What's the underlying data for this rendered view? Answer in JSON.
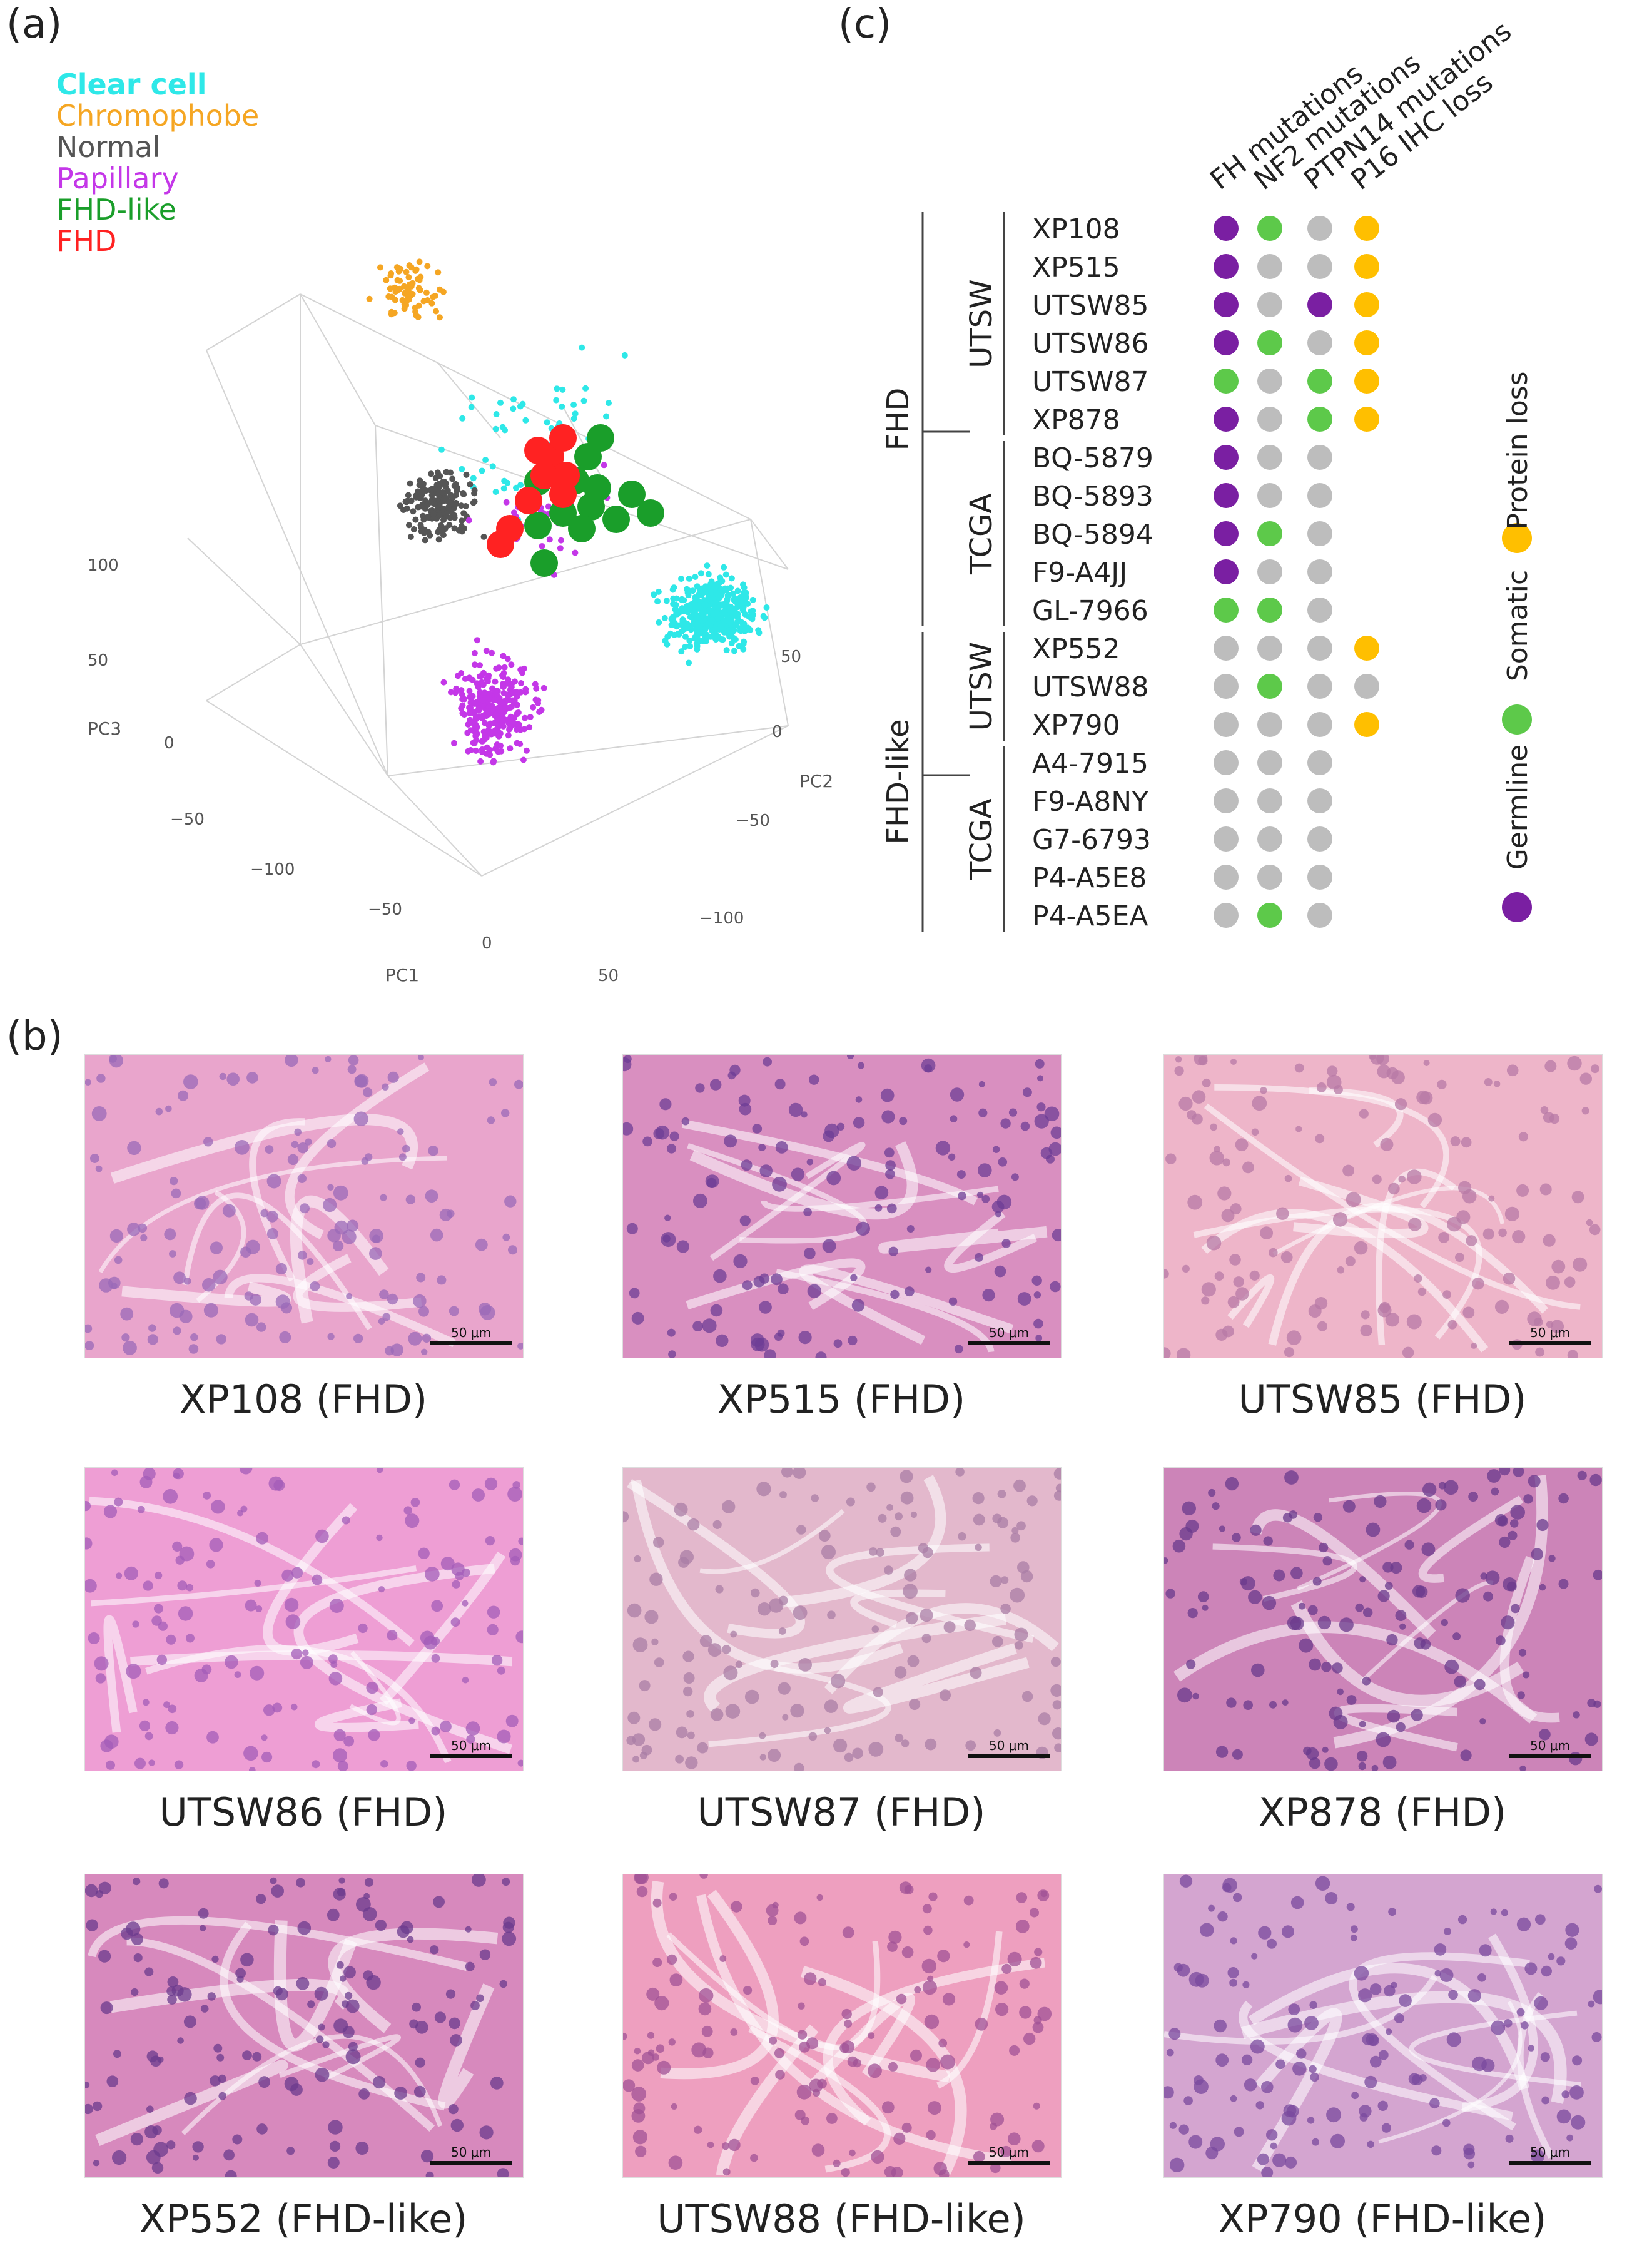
{
  "panels": {
    "a": "(a)",
    "b": "(b)",
    "c": "(c)"
  },
  "scatter": {
    "legend": [
      {
        "label": "Clear cell",
        "color": "#2ee8e8",
        "bold": true
      },
      {
        "label": "Chromophobe",
        "color": "#f5a623",
        "bold": false
      },
      {
        "label": "Normal",
        "color": "#555555",
        "bold": false
      },
      {
        "label": "Papillary",
        "color": "#c437e8",
        "bold": false
      },
      {
        "label": "FHD-like",
        "color": "#1a9e2a",
        "bold": false
      },
      {
        "label": "FHD",
        "color": "#ff2222",
        "bold": false
      }
    ],
    "axes": {
      "pc1": "PC1",
      "pc2": "PC2",
      "pc3": "PC3",
      "pc3_ticks": [
        "100",
        "50",
        "0",
        "−50"
      ],
      "pc1_ticks": [
        "−100",
        "−50",
        "0",
        "50"
      ],
      "pc2_ticks": [
        "50",
        "0",
        "−50",
        "−100"
      ]
    }
  },
  "table": {
    "columns": [
      "FH mutations",
      "NF2 mutations",
      "PTPN14 mutations",
      "P16 IHC loss"
    ],
    "groups": [
      {
        "label": "FHD",
        "subgroups": [
          {
            "label": "UTSW"
          },
          {
            "label": "TCGA"
          }
        ]
      },
      {
        "label": "FHD-like",
        "subgroups": [
          {
            "label": "UTSW"
          },
          {
            "label": "TCGA"
          }
        ]
      }
    ],
    "rows": [
      {
        "sample": "XP108",
        "cells": [
          "G",
          "S",
          "N",
          "P"
        ]
      },
      {
        "sample": "XP515",
        "cells": [
          "G",
          "N",
          "N",
          "P"
        ]
      },
      {
        "sample": "UTSW85",
        "cells": [
          "G",
          "N",
          "G",
          "P"
        ]
      },
      {
        "sample": "UTSW86",
        "cells": [
          "G",
          "S",
          "N",
          "P"
        ]
      },
      {
        "sample": "UTSW87",
        "cells": [
          "S",
          "N",
          "S",
          "P"
        ]
      },
      {
        "sample": "XP878",
        "cells": [
          "G",
          "N",
          "S",
          "P"
        ]
      },
      {
        "sample": "BQ-5879",
        "cells": [
          "G",
          "N",
          "N",
          ""
        ]
      },
      {
        "sample": "BQ-5893",
        "cells": [
          "G",
          "N",
          "N",
          ""
        ]
      },
      {
        "sample": "BQ-5894",
        "cells": [
          "G",
          "S",
          "N",
          ""
        ]
      },
      {
        "sample": "F9-A4JJ",
        "cells": [
          "G",
          "N",
          "N",
          ""
        ]
      },
      {
        "sample": "GL-7966",
        "cells": [
          "S",
          "S",
          "N",
          ""
        ]
      },
      {
        "sample": "XP552",
        "cells": [
          "N",
          "N",
          "N",
          "P"
        ]
      },
      {
        "sample": "UTSW88",
        "cells": [
          "N",
          "S",
          "N",
          "N"
        ]
      },
      {
        "sample": "XP790",
        "cells": [
          "N",
          "N",
          "N",
          "P"
        ]
      },
      {
        "sample": "A4-7915",
        "cells": [
          "N",
          "N",
          "N",
          ""
        ]
      },
      {
        "sample": "F9-A8NY",
        "cells": [
          "N",
          "N",
          "N",
          ""
        ]
      },
      {
        "sample": "G7-6793",
        "cells": [
          "N",
          "N",
          "N",
          ""
        ]
      },
      {
        "sample": "P4-A5E8",
        "cells": [
          "N",
          "N",
          "N",
          ""
        ]
      },
      {
        "sample": "P4-A5EA",
        "cells": [
          "N",
          "S",
          "N",
          ""
        ]
      }
    ],
    "dot_colors": {
      "G": "#7a1fa2",
      "S": "#5dc94a",
      "N": "#bdbdbd",
      "P": "#ffbf00"
    },
    "key": [
      {
        "label": "Germline",
        "color": "#7a1fa2"
      },
      {
        "label": "Somatic",
        "color": "#5dc94a"
      },
      {
        "label": "Protein loss",
        "color": "#ffbf00"
      }
    ]
  },
  "histology": {
    "scale_label": "50 μm",
    "images": [
      {
        "caption": "XP108 (FHD)",
        "bg": "#e9a5cc",
        "nuc": "#9a6ab8"
      },
      {
        "caption": "XP515 (FHD)",
        "bg": "#d98fc0",
        "nuc": "#6e3d96"
      },
      {
        "caption": "UTSW85 (FHD)",
        "bg": "#eeb5c9",
        "nuc": "#b77aa6"
      },
      {
        "caption": "UTSW86 (FHD)",
        "bg": "#ee9ed4",
        "nuc": "#a35cb8"
      },
      {
        "caption": "UTSW87 (FHD)",
        "bg": "#e3b8cc",
        "nuc": "#aa7da6"
      },
      {
        "caption": "XP878 (FHD)",
        "bg": "#cc84b8",
        "nuc": "#6a3a8c"
      },
      {
        "caption": "XP552 (FHD-like)",
        "bg": "#d789bd",
        "nuc": "#6b3b8d"
      },
      {
        "caption": "UTSW88 (FHD-like)",
        "bg": "#ee9fbf",
        "nuc": "#a05196"
      },
      {
        "caption": "XP790 (FHD-like)",
        "bg": "#d4a5d0",
        "nuc": "#7a4a9e"
      }
    ]
  }
}
